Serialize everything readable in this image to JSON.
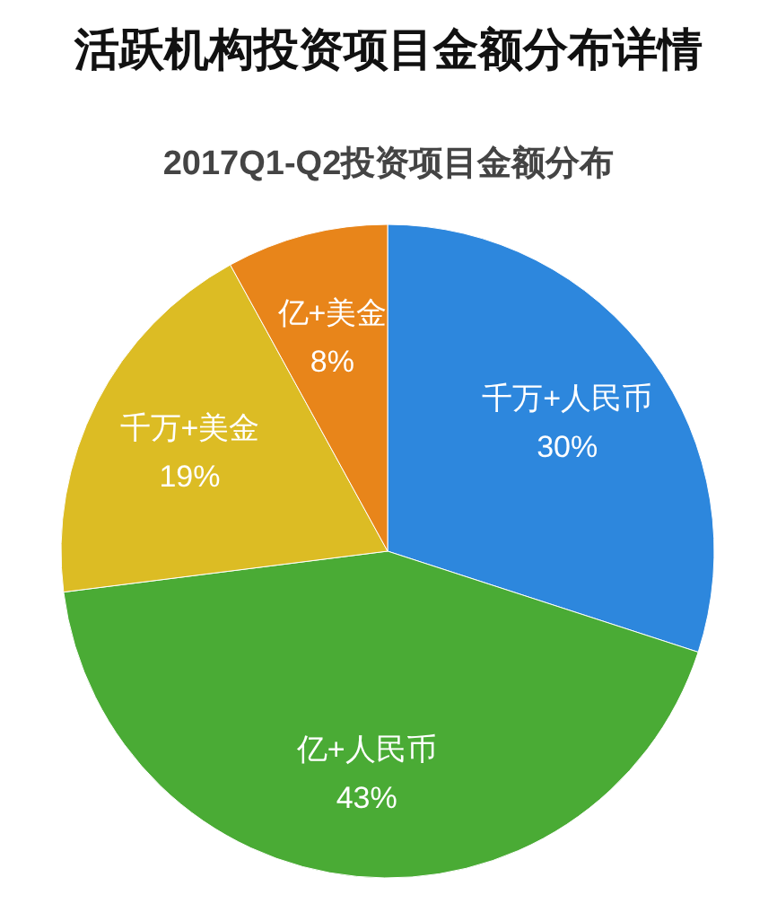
{
  "chart_data": {
    "type": "pie",
    "title": "活跃机构投资项目金额分布详情",
    "subtitle": "2017Q1-Q2投资项目金额分布",
    "categories": [
      "千万+人民币",
      "亿+人民币",
      "千万+美金",
      "亿+美金"
    ],
    "values": [
      30,
      43,
      19,
      8
    ],
    "value_labels": [
      "30%",
      "43%",
      "19%",
      "8%"
    ],
    "colors": [
      "#2d87dd",
      "#4aab35",
      "#dcbc24",
      "#e8851a"
    ]
  }
}
